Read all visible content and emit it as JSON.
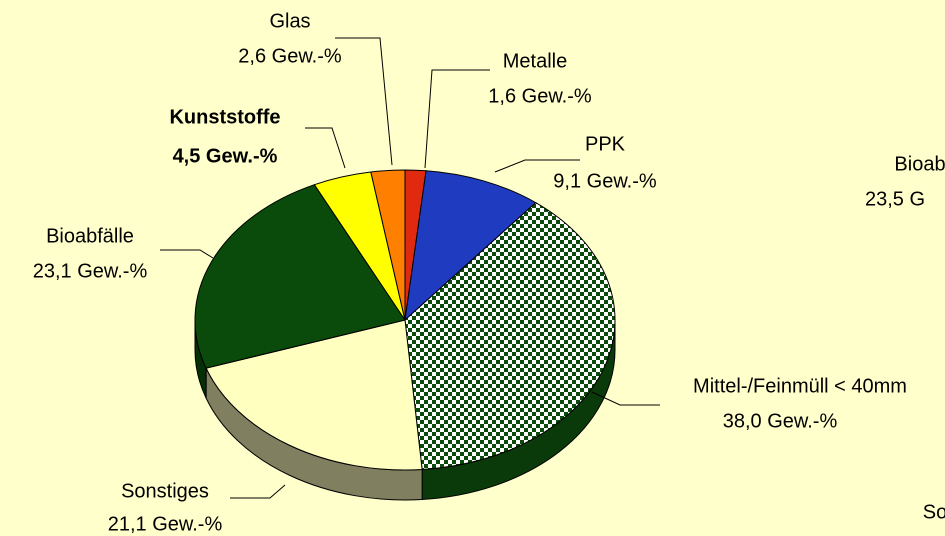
{
  "chart_data": {
    "type": "pie",
    "categories": [
      "Metalle",
      "PPK",
      "Mittel-/Feinmüll < 40mm",
      "Sonstiges",
      "Bioabfälle",
      "Kunststoffe",
      "Glas"
    ],
    "values": [
      1.6,
      9.1,
      38.0,
      21.1,
      23.1,
      4.5,
      2.6
    ],
    "value_labels": [
      "1,6 Gew.-%",
      "9,1 Gew.-%",
      "38,0 Gew.-%",
      "21,1 Gew.-%",
      "23,1 Gew.-%",
      "4,5 Gew.-%",
      "2,6 Gew.-%"
    ],
    "colors": [
      "#e02a10",
      "#1f3cc0",
      "checker",
      "#ffffc0",
      "#0a4a0a",
      "#ffff00",
      "#ff8000"
    ],
    "side_colors": [
      "#801808",
      "#102070",
      "#0a3a0a",
      "#808060",
      "#053005",
      "#909000",
      "#904800"
    ],
    "bold": [
      "Kunststoffe"
    ]
  },
  "cropped_texts": [
    "Bioab",
    "23,5 G",
    "So"
  ]
}
